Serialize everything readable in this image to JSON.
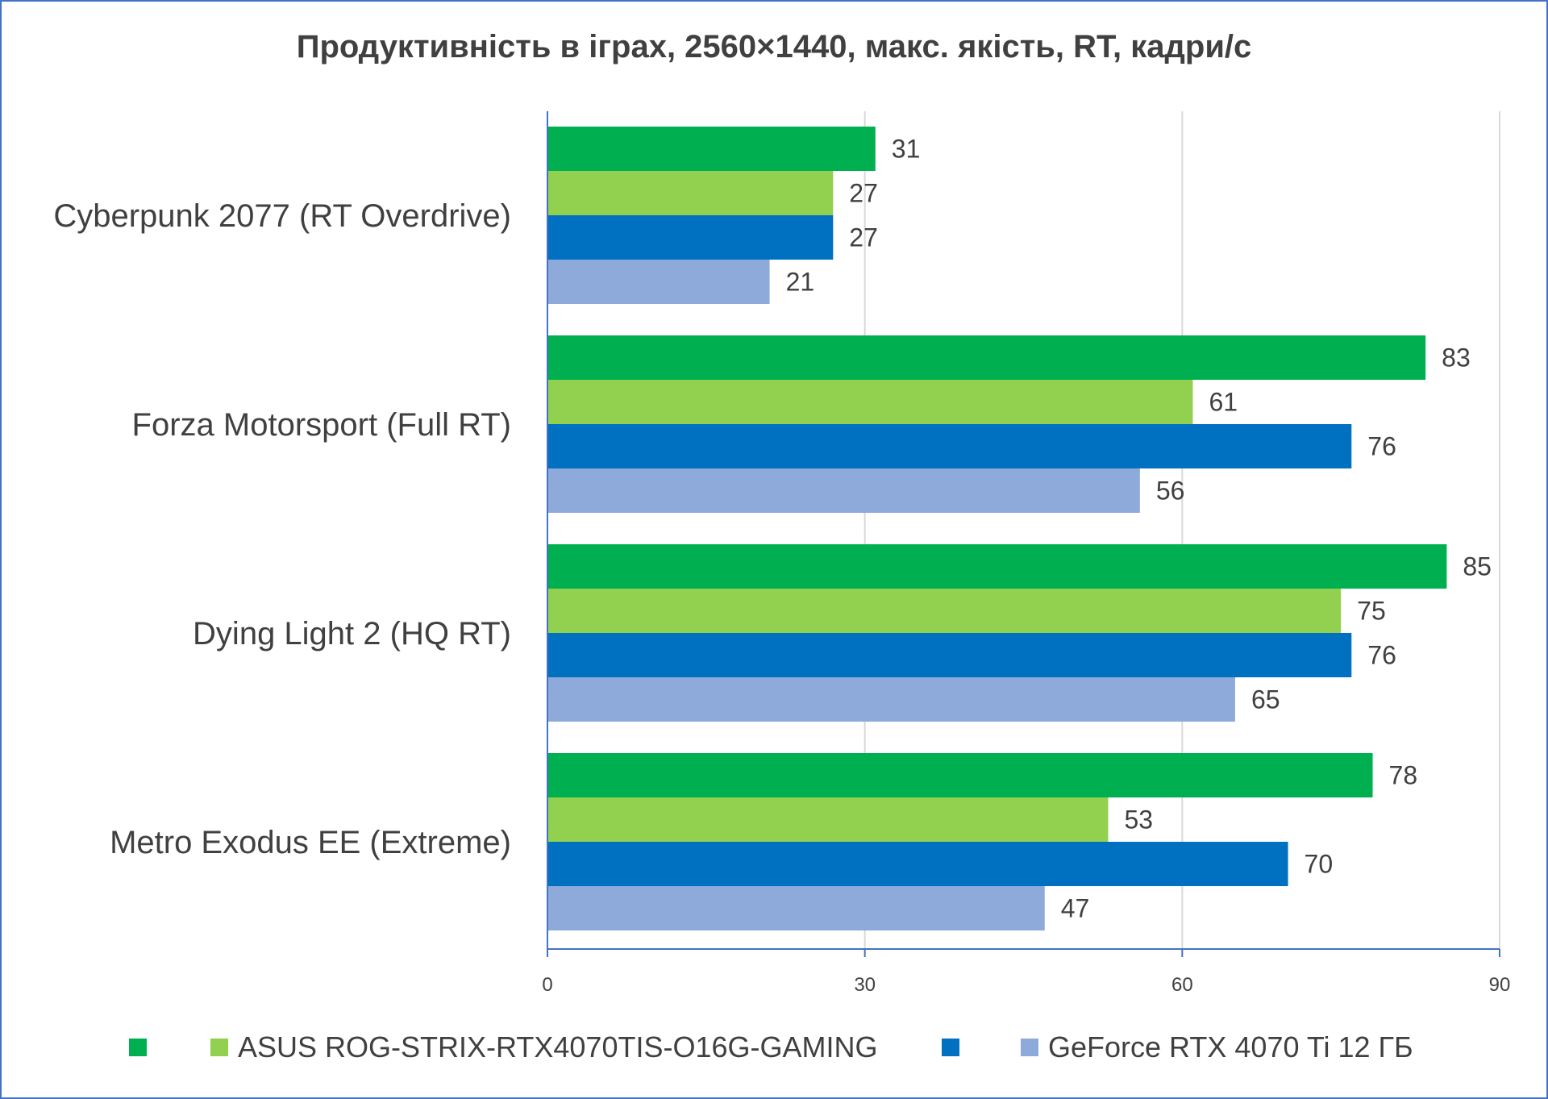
{
  "chart_data": {
    "type": "bar",
    "orientation": "horizontal",
    "title": "Продуктивність в іграх, 2560×1440, макс. якість, RT, кадри/с",
    "categories": [
      "Cyberpunk 2077 (RT Overdrive)",
      "Forza Motorsport (Full RT)",
      "Dying Light 2 (HQ RT)",
      "Metro Exodus EE (Extreme)"
    ],
    "series": [
      {
        "name": "",
        "color": "#00b050",
        "values": [
          31,
          83,
          85,
          78
        ]
      },
      {
        "name": "ASUS ROG-STRIX-RTX4070TIS-O16G-GAMING",
        "color": "#92d050",
        "values": [
          27,
          61,
          75,
          53
        ]
      },
      {
        "name": "",
        "color": "#0070c0",
        "values": [
          27,
          76,
          76,
          70
        ]
      },
      {
        "name": "GeForce RTX 4070 Ti 12 ГБ",
        "color": "#8eaadb",
        "values": [
          21,
          56,
          65,
          47
        ]
      }
    ],
    "xlim": [
      0,
      90
    ],
    "xticks": [
      0,
      30,
      60,
      90
    ],
    "xlabel": "",
    "ylabel": "",
    "grid": "vertical",
    "legend": "bottom"
  }
}
